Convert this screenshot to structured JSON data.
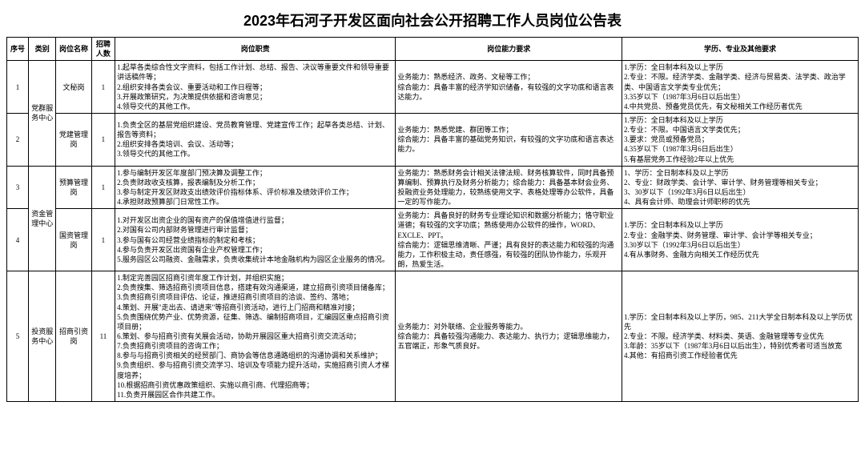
{
  "title": "2023年石河子开发区面向社会公开招聘工作人员岗位公告表",
  "headers": {
    "seq": "序号",
    "category": "类别",
    "post": "岗位名称",
    "count": "招聘人数",
    "duty": "岗位职责",
    "skill": "岗位能力要求",
    "edu": "学历、专业及其他要求"
  },
  "rows": [
    {
      "seq": "1",
      "category": "党群服务中心",
      "post": "文秘岗",
      "count": "1",
      "duty": "1.起草各类综合性文字资料，包括工作计划、总结、报告、决议等重要文件和领导重要讲话稿件等；\n2.组织安排各类会议、重要活动和工作日程等；\n3.开展政策研究，为决策提供依据和咨询意见；\n4.领导交代的其他工作。",
      "skill": "业务能力：熟悉经济、政务、文秘等工作；\n综合能力：具备丰富的经济学知识储备，有较强的文字功底和语言表达能力。",
      "edu": "1.学历：全日制本科及以上学历\n2.专业：不限。经济学类、金融学类、经济与贸易类、法学类、政治学类、中国语言文学类专业优先；\n3.35岁以下（1987年3月6日以后出生）\n4.中共党员、预备党员优先，有文秘相关工作经历者优先"
    },
    {
      "seq": "2",
      "category": "",
      "post": "党建管理岗",
      "count": "1",
      "duty": "1.负责全区的基层党组织建设、党员教育管理、党建宣传工作；起草各类总结、计划、报告等资料；\n2.组织安排各类培训、会议、活动等；\n3.领导交代的其他工作。",
      "skill": "业务能力：熟悉党建、群团等工作；\n综合能力：具备丰富的基础党务知识，有较强的文字功底和语言表达能力。",
      "edu": "1.学历：全日制本科及以上学历\n2.专业：不限。中国语言文学类优先；\n3.要求：党员或预备党员；\n4.35岁以下（1987年3月6日后出生）\n5.有基层党务工作经验2年以上优先"
    },
    {
      "seq": "3",
      "category": "资金管理中心",
      "post": "预算管理岗",
      "count": "1",
      "duty": "1.参与编制开发区年度部门预决算及调整工作；\n2.负责财政收支核算，报表编制及分析工作；\n3.参与制定开发区财政支出绩效评价指标体系、评价标准及绩效评价工作；\n4.承担财政预算部门日常性工作。",
      "skill": "业务能力：熟悉财务会计相关法律法规、财务核算软件，同时具备预算编制、预算执行及财务分析能力；综合能力：具备基本财会业务、投融资业务处理能力，较熟练使用文字、表格处理等办公软件，具备一定的写作能力。",
      "edu": "1、学历：全日制本科及以上学历\n2、专业：财政学类、会计学、审计学、财务管理等相关专业；\n3、30岁以下（1992年3月6日以后出生）\n4、具有会计师、助理会计师职称的优先"
    },
    {
      "seq": "4",
      "category": "",
      "post": "国资管理岗",
      "count": "1",
      "duty": "1.对开发区出资企业的国有资产的保值增值进行监督；\n2.对国有公司内部财务管理进行审计监督；\n3.参与国有公司经营业绩指标的制定和考核；\n4.参与负责开发区出资国有企业产权管理工作；\n5.服务园区公司融资、金融需求，负责收集统计本地金融机构为园区企业服务的情况。",
      "skill": "业务能力：具备良好的财务专业理论知识和数据分析能力；恪守职业道德；有较强的文字功底；熟练使用办公软件的操作，WORD、EXCLE、PPT。\n综合能力：逻辑思维清晰、严谨；具有良好的表达能力和较强的沟通能力，工作积极主动，责任感强，有较强的团队协作能力，乐观开朗，热爱生活。",
      "edu": "1.学历：全日制本科及以上学历\n2.专业：金融学类、财务管理、审计学、会计学等相关专业；\n3.30岁以下（1992年3月6日以后出生）\n4.有从事财务、金融方向相关工作经历优先"
    },
    {
      "seq": "5",
      "category": "投资服务中心",
      "post": "招商引资岗",
      "count": "11",
      "duty": "1.制定完善园区招商引资年度工作计划，并组织实施；\n2.负责搜集、筛选招商引资项目信息，搭建有效沟通渠道，建立招商引资项目储备库；\n3.负责招商引资项目评估、论证，推进招商引资项目的洽谈、签约、落地；\n4.策划、开展\"走出去、请进来\"等招商引资活动，进行上门招商和精准对接；\n5.负责围绕优势产业、优势资源，征集、筛选、编制招商项目，汇编园区重点招商引资项目册；\n6.策划、参与招商引资有关展会活动，协助开展园区重大招商引资交流活动；\n7.负责招商引资项目的咨询工作；\n8.参与与招商引资相关的经贸部门、商协会等信息通路组织的沟通协调和关系维护；\n9.负责组织、参与招商引资交流学习、培训及专项能力提升活动，实施招商引资人才梯度培养；\n10.根据招商引资优惠政策组织、实施以商引商、代理招商等；\n11.负责开展园区合作共建工作。",
      "skill": "业务能力：对外联络、企业服务等能力。\n综合能力：具备较强沟通能力、表达能力、执行力；逻辑思维能力，五官端正，形象气质良好。",
      "edu": "1.学历：全日制本科及以上学历，985、211大学全日制本科及以上学历优先\n2.专业：不限。经济学类、材料类、英语、金融管理等专业优先\n3.年龄：35岁以下（1987年3月6日以后出生），特别优秀者可适当放宽\n4.其他：有招商引资工作经验者优先"
    }
  ]
}
